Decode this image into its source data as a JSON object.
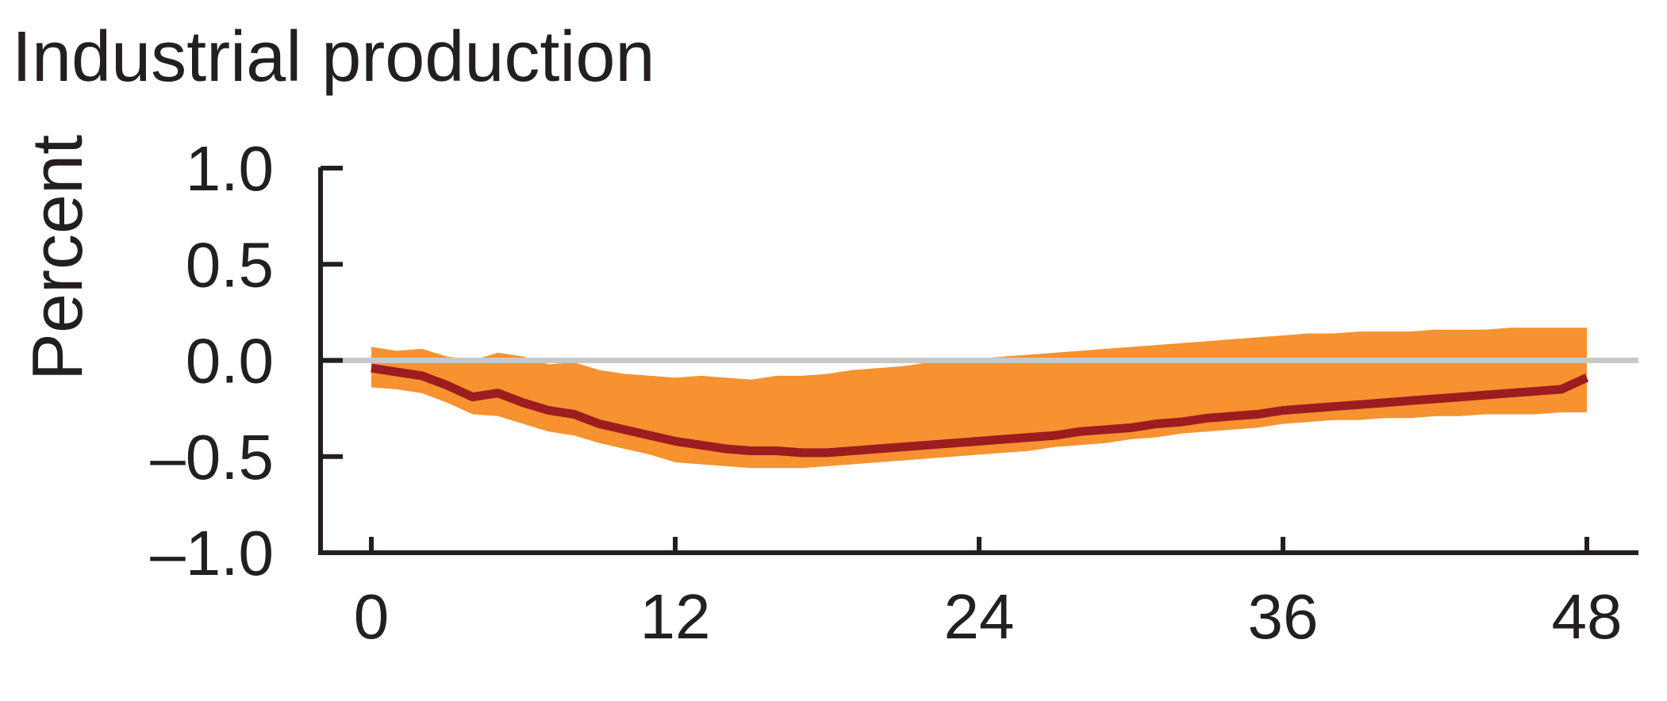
{
  "chart_data": {
    "type": "area",
    "title": "Industrial production",
    "xlabel": "",
    "ylabel": "Percent",
    "xlim": [
      0,
      48
    ],
    "ylim": [
      -1.0,
      1.0
    ],
    "xticks": [
      0,
      12,
      24,
      36,
      48
    ],
    "xtick_labels": [
      "0",
      "12",
      "24",
      "36",
      "48"
    ],
    "yticks": [
      1.0,
      0.5,
      0.0,
      -0.5,
      -1.0
    ],
    "ytick_labels": [
      "1.0",
      "0.5",
      "0.0",
      "–0.5",
      "–1.0"
    ],
    "grid": false,
    "reference_line_y": 0.0,
    "x": [
      0,
      1,
      2,
      3,
      4,
      5,
      6,
      7,
      8,
      9,
      10,
      11,
      12,
      13,
      14,
      15,
      16,
      17,
      18,
      19,
      20,
      21,
      22,
      23,
      24,
      25,
      26,
      27,
      28,
      29,
      30,
      31,
      32,
      33,
      34,
      35,
      36,
      37,
      38,
      39,
      40,
      41,
      42,
      43,
      44,
      45,
      46,
      47,
      48
    ],
    "series": [
      {
        "kind": "line",
        "values": [
          -0.04,
          -0.06,
          -0.08,
          -0.13,
          -0.19,
          -0.17,
          -0.22,
          -0.26,
          -0.28,
          -0.33,
          -0.36,
          -0.39,
          -0.42,
          -0.44,
          -0.46,
          -0.47,
          -0.47,
          -0.48,
          -0.48,
          -0.47,
          -0.46,
          -0.45,
          -0.44,
          -0.43,
          -0.42,
          -0.41,
          -0.4,
          -0.39,
          -0.37,
          -0.36,
          -0.35,
          -0.33,
          -0.32,
          -0.3,
          -0.29,
          -0.28,
          -0.26,
          -0.25,
          -0.24,
          -0.23,
          -0.22,
          -0.21,
          -0.2,
          -0.19,
          -0.18,
          -0.17,
          -0.16,
          -0.15,
          -0.09
        ]
      },
      {
        "kind": "band_upper",
        "values": [
          0.07,
          0.05,
          0.06,
          0.02,
          0.0,
          0.04,
          0.02,
          -0.02,
          -0.01,
          -0.05,
          -0.07,
          -0.08,
          -0.09,
          -0.08,
          -0.09,
          -0.1,
          -0.08,
          -0.08,
          -0.07,
          -0.05,
          -0.04,
          -0.03,
          -0.01,
          0.0,
          0.01,
          0.02,
          0.03,
          0.04,
          0.05,
          0.06,
          0.07,
          0.08,
          0.09,
          0.1,
          0.11,
          0.12,
          0.13,
          0.14,
          0.14,
          0.15,
          0.15,
          0.15,
          0.16,
          0.16,
          0.16,
          0.17,
          0.17,
          0.17,
          0.17
        ]
      },
      {
        "kind": "band_lower",
        "values": [
          -0.14,
          -0.15,
          -0.17,
          -0.22,
          -0.28,
          -0.29,
          -0.33,
          -0.37,
          -0.39,
          -0.43,
          -0.46,
          -0.49,
          -0.53,
          -0.54,
          -0.55,
          -0.56,
          -0.56,
          -0.56,
          -0.55,
          -0.54,
          -0.53,
          -0.52,
          -0.51,
          -0.5,
          -0.49,
          -0.48,
          -0.47,
          -0.45,
          -0.44,
          -0.43,
          -0.41,
          -0.4,
          -0.38,
          -0.37,
          -0.36,
          -0.35,
          -0.33,
          -0.32,
          -0.31,
          -0.31,
          -0.3,
          -0.3,
          -0.29,
          -0.29,
          -0.28,
          -0.28,
          -0.28,
          -0.27,
          -0.27
        ]
      }
    ],
    "colors": {
      "band": "#f6922f",
      "line": "#9d1c20",
      "zero_line": "#c8c8c8",
      "axis": "#231f20",
      "text": "#231f20"
    }
  }
}
